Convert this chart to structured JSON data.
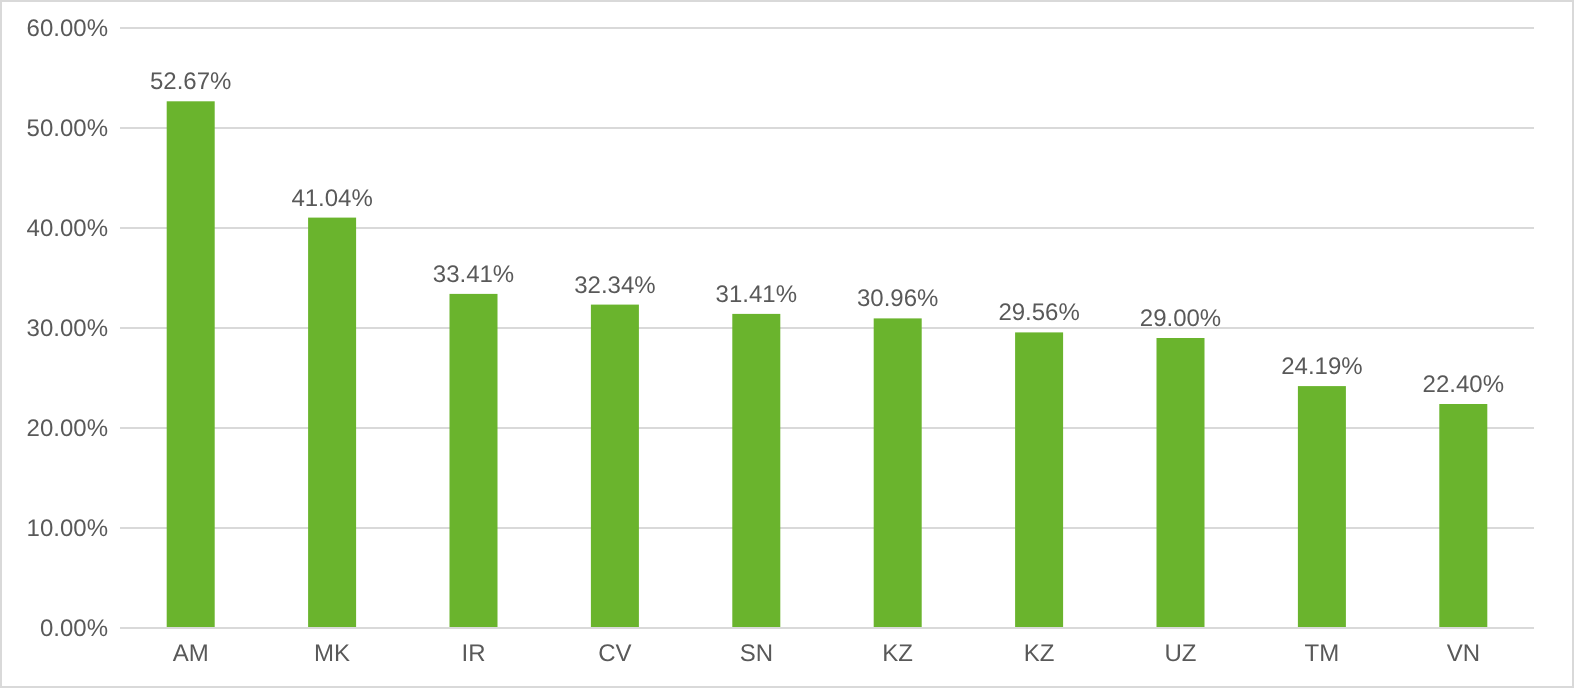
{
  "chart_data": {
    "type": "bar",
    "categories": [
      "AM",
      "MK",
      "IR",
      "CV",
      "SN",
      "KZ",
      "KZ",
      "UZ",
      "TM",
      "VN"
    ],
    "values": [
      52.67,
      41.04,
      33.41,
      32.34,
      31.41,
      30.96,
      29.56,
      29.0,
      24.19,
      22.4
    ],
    "value_labels": [
      "52.67%",
      "41.04%",
      "33.41%",
      "32.34%",
      "31.41%",
      "30.96%",
      "29.56%",
      "29.00%",
      "24.19%",
      "22.40%"
    ],
    "color": "#6ab42d",
    "ylim": [
      0,
      60
    ],
    "yticks": [
      {
        "value": 0,
        "label": "0.00%"
      },
      {
        "value": 10,
        "label": "10.00%"
      },
      {
        "value": 20,
        "label": "20.00%"
      },
      {
        "value": 30,
        "label": "30.00%"
      },
      {
        "value": 40,
        "label": "40.00%"
      },
      {
        "value": 50,
        "label": "50.00%"
      },
      {
        "value": 60,
        "label": "60.00%"
      }
    ],
    "grid": "y"
  }
}
